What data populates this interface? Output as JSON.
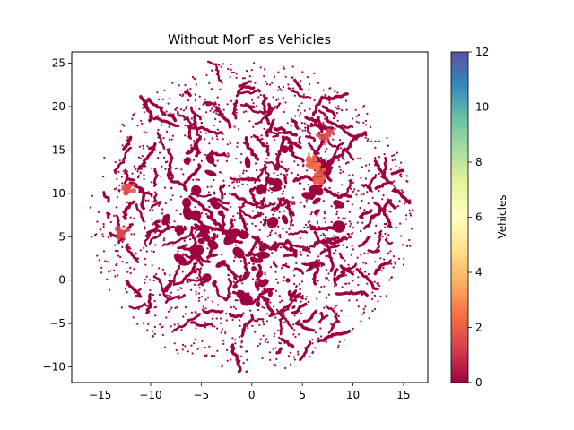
{
  "chart_data": {
    "type": "scatter",
    "title": "Without MorF as Vehicles",
    "xlabel": "",
    "ylabel": "",
    "xlim": [
      -17.8,
      17.4
    ],
    "ylim": [
      -11.8,
      26.3
    ],
    "xticks": [
      -15,
      -10,
      -5,
      0,
      5,
      10,
      15
    ],
    "yticks": [
      -10,
      -5,
      0,
      5,
      10,
      15,
      20,
      25
    ],
    "grid": false,
    "colorbar": {
      "label": "Vehicles",
      "min": 0,
      "max": 12,
      "ticks": [
        0,
        2,
        4,
        6,
        8,
        10,
        12
      ],
      "colormap": "Spectral",
      "colors": [
        "#9e0142",
        "#d53e4f",
        "#f46d43",
        "#fdae61",
        "#fee08b",
        "#ffffbf",
        "#e6f598",
        "#abdda4",
        "#66c2a5",
        "#3288bd",
        "#5e4fa2"
      ]
    },
    "point_cloud": {
      "center": [
        0,
        7.3
      ],
      "radius": 16,
      "base_value": 0,
      "description_note": ""
    },
    "hotspots": [
      {
        "x": 6.2,
        "y": 12.8,
        "value": 2.5
      },
      {
        "x": 5.8,
        "y": 13.8,
        "value": 2.2
      },
      {
        "x": 6.8,
        "y": 11.6,
        "value": 2.0
      },
      {
        "x": 7.4,
        "y": 16.8,
        "value": 1.6
      },
      {
        "x": -12.3,
        "y": 10.6,
        "value": 1.6
      },
      {
        "x": -12.9,
        "y": 5.6,
        "value": 1.4
      }
    ]
  }
}
